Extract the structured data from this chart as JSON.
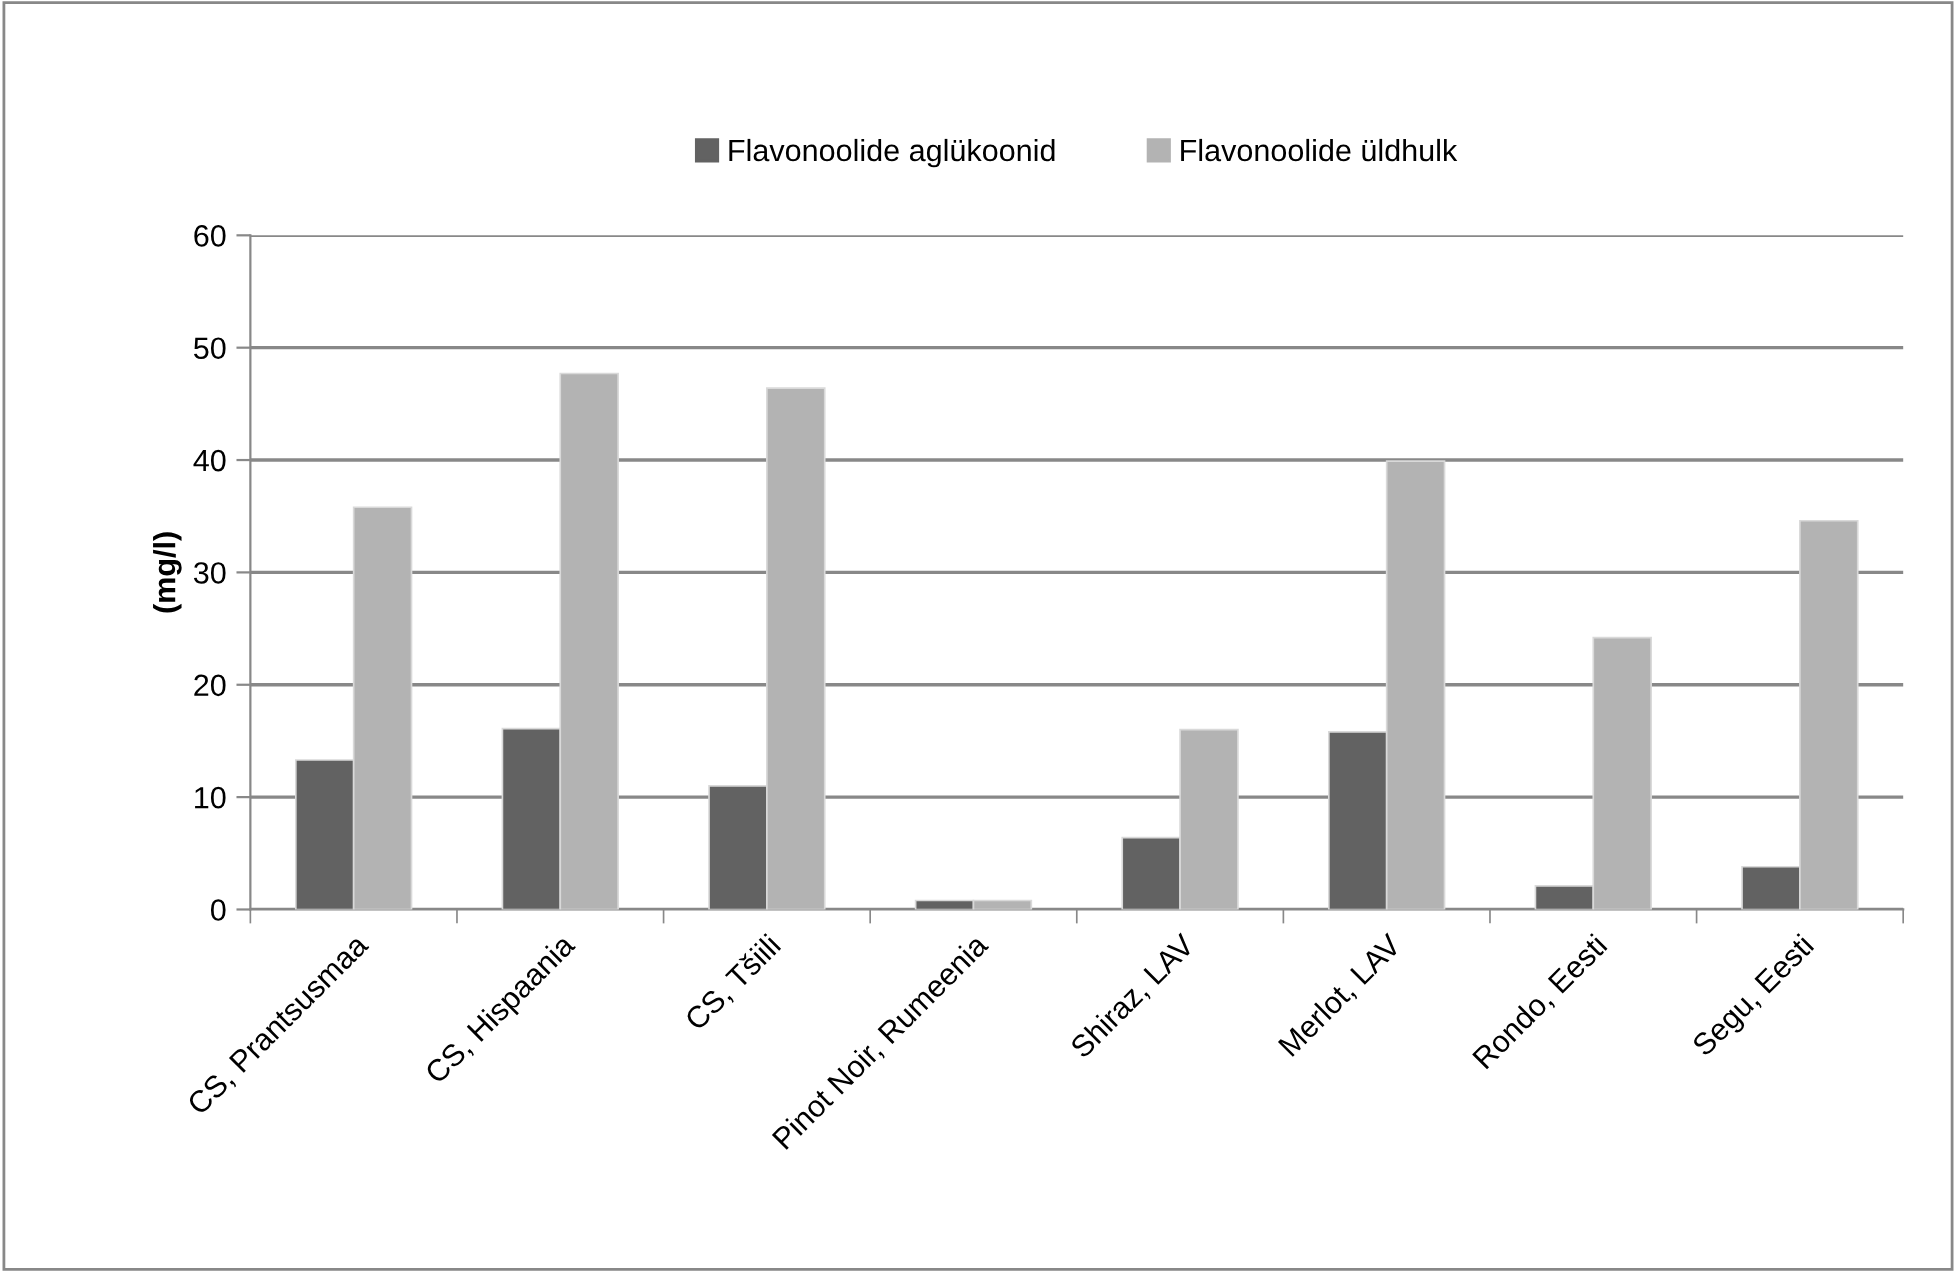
{
  "chart_data": {
    "type": "bar",
    "ylabel": "(mg/l)",
    "categories": [
      "CS, Prantsusmaa",
      "CS, Hispaania",
      "CS, Tšiili",
      "Pinot Noir, Rumeenia",
      "Shiraz, LAV",
      "Merlot, LAV",
      "Rondo, Eesti",
      "Segu, Eesti"
    ],
    "series": [
      {
        "name": "Flavonoolide aglükoonid",
        "color": "#626262",
        "values": [
          13.3,
          16.1,
          11.0,
          0.8,
          6.4,
          15.8,
          2.1,
          3.8
        ]
      },
      {
        "name": "Flavonoolide üldhulk",
        "color": "#b3b3b3",
        "values": [
          35.8,
          47.7,
          46.4,
          0.8,
          16.0,
          39.9,
          24.2,
          34.6
        ]
      }
    ],
    "ylim": [
      0,
      60
    ],
    "yticks": [
      0,
      10,
      20,
      30,
      40,
      50,
      60
    ],
    "grid": "y",
    "legend": "top"
  }
}
